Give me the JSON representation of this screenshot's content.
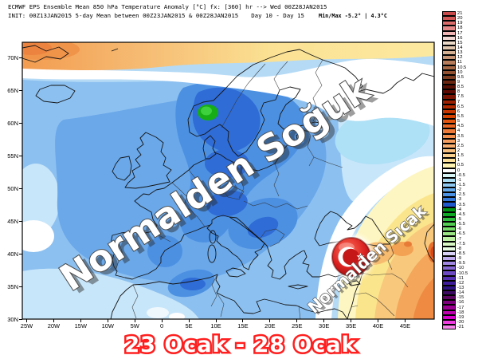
{
  "header": {
    "line1": "ECMWF EPS Ensemble Mean 850 hPa Temperature Anomaly [°C] fx: [360] hr --> Wed 00Z28JAN2015",
    "line2_init": "INIT: 00Z13JAN2015 5-day Mean between 00Z23JAN2015 & 00Z28JAN2015",
    "line2_day": "Day 10 - Day 15",
    "line2_minmax": "Min/Max -5.2° |  4.3°C"
  },
  "map": {
    "watermark_cold": "Normalden Soğuk",
    "watermark_warm": "Normalden Sıcak",
    "flag_icon": "turkey-flag-roundel",
    "x_tick_labels": [
      "25W",
      "20W",
      "15W",
      "10W",
      "5W",
      "0",
      "5E",
      "10E",
      "15E",
      "20E",
      "25E",
      "30E",
      "35E",
      "40E",
      "45E"
    ],
    "y_tick_labels": [
      "70N",
      "65N",
      "60N",
      "55N",
      "50N",
      "45N",
      "40N",
      "35N",
      "30N"
    ],
    "extremes": {
      "min_c": -5.2,
      "max_c": 4.3
    }
  },
  "footer": {
    "date_range": "23 Ocak - 28 Ocak",
    "fill_color": "#ffffff",
    "outline_color": "#ff1f1f"
  },
  "colorbar": {
    "unit": "°C",
    "entries": [
      {
        "label": "21",
        "color": "#c94a4a"
      },
      {
        "label": "20",
        "color": "#d25858"
      },
      {
        "label": "19",
        "color": "#dc6c6c"
      },
      {
        "label": "18",
        "color": "#e68888"
      },
      {
        "label": "17",
        "color": "#f0b4b4"
      },
      {
        "label": "16",
        "color": "#f2d8d4"
      },
      {
        "label": "15",
        "color": "#ecdac8"
      },
      {
        "label": "14",
        "color": "#e1c6ae"
      },
      {
        "label": "13",
        "color": "#d5af92"
      },
      {
        "label": "12",
        "color": "#c79476"
      },
      {
        "label": "11",
        "color": "#b77c5a"
      },
      {
        "label": "10.5",
        "color": "#a56744"
      },
      {
        "label": "10",
        "color": "#925130"
      },
      {
        "label": "9.5",
        "color": "#7e3c20"
      },
      {
        "label": "9",
        "color": "#6a2610"
      },
      {
        "label": "8.5",
        "color": "#581004"
      },
      {
        "label": "8",
        "color": "#5e0a02"
      },
      {
        "label": "7.5",
        "color": "#7c1404"
      },
      {
        "label": "7",
        "color": "#9c2002"
      },
      {
        "label": "6.5",
        "color": "#b42a00"
      },
      {
        "label": "6",
        "color": "#c63400"
      },
      {
        "label": "5.5",
        "color": "#d64200"
      },
      {
        "label": "5",
        "color": "#e25510"
      },
      {
        "label": "4.5",
        "color": "#ea6826"
      },
      {
        "label": "4",
        "color": "#ee7a3a"
      },
      {
        "label": "3.5",
        "color": "#f18e4e"
      },
      {
        "label": "3",
        "color": "#f39e60"
      },
      {
        "label": "2.5",
        "color": "#f5ae70"
      },
      {
        "label": "2",
        "color": "#f7c080"
      },
      {
        "label": "1.5",
        "color": "#f9d08e"
      },
      {
        "label": "1",
        "color": "#fbe09c"
      },
      {
        "label": "0.5",
        "color": "#fdf2b0"
      },
      {
        "label": "0",
        "color": "#ffffff"
      },
      {
        "label": "-0.5",
        "color": "#d6f4f4"
      },
      {
        "label": "-1",
        "color": "#aadcf2"
      },
      {
        "label": "-1.5",
        "color": "#8ec8f0"
      },
      {
        "label": "-2",
        "color": "#66aaec"
      },
      {
        "label": "-2.5",
        "color": "#4c92e4"
      },
      {
        "label": "-3",
        "color": "#3478da"
      },
      {
        "label": "-3.5",
        "color": "#2059cc"
      },
      {
        "label": "-4",
        "color": "#009614"
      },
      {
        "label": "-4.5",
        "color": "#0caa24"
      },
      {
        "label": "-5",
        "color": "#2cbe3c"
      },
      {
        "label": "-5.5",
        "color": "#52ce52"
      },
      {
        "label": "-6",
        "color": "#76dc6a"
      },
      {
        "label": "-6.5",
        "color": "#9ae684"
      },
      {
        "label": "-7",
        "color": "#bcf0a2"
      },
      {
        "label": "-7.5",
        "color": "#d8f8c4"
      },
      {
        "label": "-8",
        "color": "#e8fce4"
      },
      {
        "label": "-8.5",
        "color": "#d8d0f6"
      },
      {
        "label": "-9",
        "color": "#beaaee"
      },
      {
        "label": "-9.5",
        "color": "#a287e2"
      },
      {
        "label": "-10",
        "color": "#8767d4"
      },
      {
        "label": "-10.5",
        "color": "#6d49c4"
      },
      {
        "label": "-11",
        "color": "#5530b2"
      },
      {
        "label": "-12",
        "color": "#3e1c9c"
      },
      {
        "label": "-13",
        "color": "#2e1284"
      },
      {
        "label": "-14",
        "color": "#3c0a62"
      },
      {
        "label": "-15",
        "color": "#5c0662"
      },
      {
        "label": "-16",
        "color": "#7c007a"
      },
      {
        "label": "-17",
        "color": "#9c0092"
      },
      {
        "label": "-18",
        "color": "#bc00ae"
      },
      {
        "label": "-19",
        "color": "#d800cc"
      },
      {
        "label": "-20",
        "color": "#ee3ce0"
      },
      {
        "label": "-21",
        "color": "#f884ec"
      }
    ]
  },
  "chart_data": {
    "type": "heatmap",
    "title": "ECMWF EPS Ensemble Mean 850 hPa Temperature Anomaly [°C]",
    "valid_time": "Wed 00Z28JAN2015",
    "mean_period": "00Z23JAN2015 to 00Z28JAN2015 (Day 10 - Day 15)",
    "x_range_lon": [
      "25W",
      "45E"
    ],
    "y_range_lat": [
      "30N",
      "70N"
    ],
    "anomaly_min_c": -5.2,
    "anomaly_max_c": 4.3,
    "scale_values_c": [
      21,
      20,
      19,
      18,
      17,
      16,
      15,
      14,
      13,
      12,
      11,
      10.5,
      10,
      9.5,
      9,
      8.5,
      8,
      7.5,
      7,
      6.5,
      6,
      5.5,
      5,
      4.5,
      4,
      3.5,
      3,
      2.5,
      2,
      1.5,
      1,
      0.5,
      0,
      -0.5,
      -1,
      -1.5,
      -2,
      -2.5,
      -3,
      -3.5,
      -4,
      -4.5,
      -5,
      -5.5,
      -6,
      -6.5,
      -7,
      -7.5,
      -8,
      -8.5,
      -9,
      -9.5,
      -10,
      -10.5,
      -11,
      -12,
      -13,
      -14,
      -15,
      -16,
      -17,
      -18,
      -19,
      -20,
      -21
    ],
    "legend_position": "right",
    "notes": "Cold (blue/green, min -5.2°C over southern Norway) over most of Europe; warm (yellow/orange) over Turkey/Middle East and Arctic top edge"
  }
}
